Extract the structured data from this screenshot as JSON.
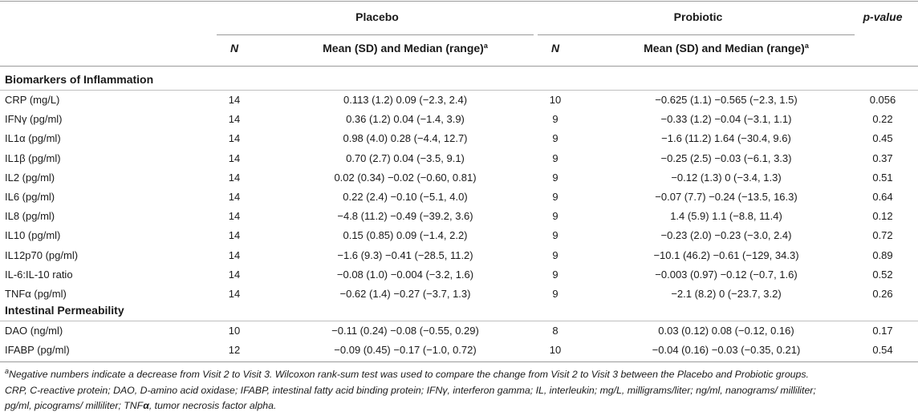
{
  "header": {
    "placebo": "Placebo",
    "probiotic": "Probiotic",
    "p_value": "p-value",
    "n_label": "N",
    "stat_label": "Mean (SD) and Median (range)",
    "stat_sup": "a"
  },
  "sections": [
    {
      "title": "Biomarkers of Inflammation",
      "rows": [
        {
          "label": "CRP (mg/L)",
          "n1": "14",
          "s1": "0.113 (1.2) 0.09 (−2.3, 2.4)",
          "n2": "10",
          "s2": "−0.625 (1.1) −0.565 (−2.3, 1.5)",
          "p": "0.056"
        },
        {
          "label": "IFNγ (pg/ml)",
          "n1": "14",
          "s1": "0.36 (1.2) 0.04 (−1.4, 3.9)",
          "n2": "9",
          "s2": "−0.33 (1.2) −0.04 (−3.1, 1.1)",
          "p": "0.22"
        },
        {
          "label": "IL1α (pg/ml)",
          "n1": "14",
          "s1": "0.98 (4.0) 0.28 (−4.4, 12.7)",
          "n2": "9",
          "s2": "−1.6 (11.2) 1.64 (−30.4, 9.6)",
          "p": "0.45"
        },
        {
          "label": "IL1β (pg/ml)",
          "n1": "14",
          "s1": "0.70 (2.7) 0.04 (−3.5, 9.1)",
          "n2": "9",
          "s2": "−0.25 (2.5) −0.03 (−6.1, 3.3)",
          "p": "0.37"
        },
        {
          "label": "IL2 (pg/ml)",
          "n1": "14",
          "s1": "0.02 (0.34) −0.02 (−0.60, 0.81)",
          "n2": "9",
          "s2": "−0.12 (1.3) 0 (−3.4, 1.3)",
          "p": "0.51"
        },
        {
          "label": "IL6 (pg/ml)",
          "n1": "14",
          "s1": "0.22 (2.4) −0.10 (−5.1, 4.0)",
          "n2": "9",
          "s2": "−0.07 (7.7) −0.24 (−13.5, 16.3)",
          "p": "0.64"
        },
        {
          "label": "IL8 (pg/ml)",
          "n1": "14",
          "s1": "−4.8 (11.2) −0.49 (−39.2, 3.6)",
          "n2": "9",
          "s2": "1.4 (5.9) 1.1 (−8.8, 11.4)",
          "p": "0.12"
        },
        {
          "label": "IL10 (pg/ml)",
          "n1": "14",
          "s1": "0.15 (0.85) 0.09 (−1.4, 2.2)",
          "n2": "9",
          "s2": "−0.23 (2.0) −0.23 (−3.0, 2.4)",
          "p": "0.72"
        },
        {
          "label": "IL12p70 (pg/ml)",
          "n1": "14",
          "s1": "−1.6 (9.3) −0.41 (−28.5, 11.2)",
          "n2": "9",
          "s2": "−10.1 (46.2) −0.61 (−129, 34.3)",
          "p": "0.89"
        },
        {
          "label": "IL-6:IL-10 ratio",
          "n1": "14",
          "s1": "−0.08 (1.0) −0.004 (−3.2, 1.6)",
          "n2": "9",
          "s2": "−0.003 (0.97) −0.12 (−0.7, 1.6)",
          "p": "0.52"
        },
        {
          "label": "TNFα (pg/ml)",
          "n1": "14",
          "s1": "−0.62 (1.4) −0.27 (−3.7, 1.3)",
          "n2": "9",
          "s2": "−2.1 (8.2) 0 (−23.7, 3.2)",
          "p": "0.26"
        }
      ]
    },
    {
      "title": "Intestinal Permeability",
      "rows": [
        {
          "label": "DAO (ng/ml)",
          "n1": "10",
          "s1": "−0.11 (0.24) −0.08 (−0.55, 0.29)",
          "n2": "8",
          "s2": "0.03 (0.12) 0.08 (−0.12, 0.16)",
          "p": "0.17"
        },
        {
          "label": "IFABP (pg/ml)",
          "n1": "12",
          "s1": "−0.09 (0.45) −0.17 (−1.0, 0.72)",
          "n2": "10",
          "s2": "−0.04 (0.16) −0.03 (−0.35, 0.21)",
          "p": "0.54"
        }
      ]
    }
  ],
  "footnote": {
    "sup": "a",
    "line1": "Negative numbers indicate a decrease from Visit 2 to Visit 3. Wilcoxon rank-sum test was used to compare the change from Visit 2 to Visit 3 between the Placebo and Probiotic groups.",
    "line2_prefix": "CRP, C-reactive protein; DAO, D-amino acid oxidase; IFABP, intestinal fatty acid binding protein; IFNγ, interferon gamma; IL, interleukin; mg/L, milligrams/liter; ng/ml, nanograms/ milliliter;",
    "line3_a": "pg/ml, picograms/ milliliter; TNF",
    "line3_alpha": "α",
    "line3_b": ", tumor necrosis factor alpha."
  }
}
